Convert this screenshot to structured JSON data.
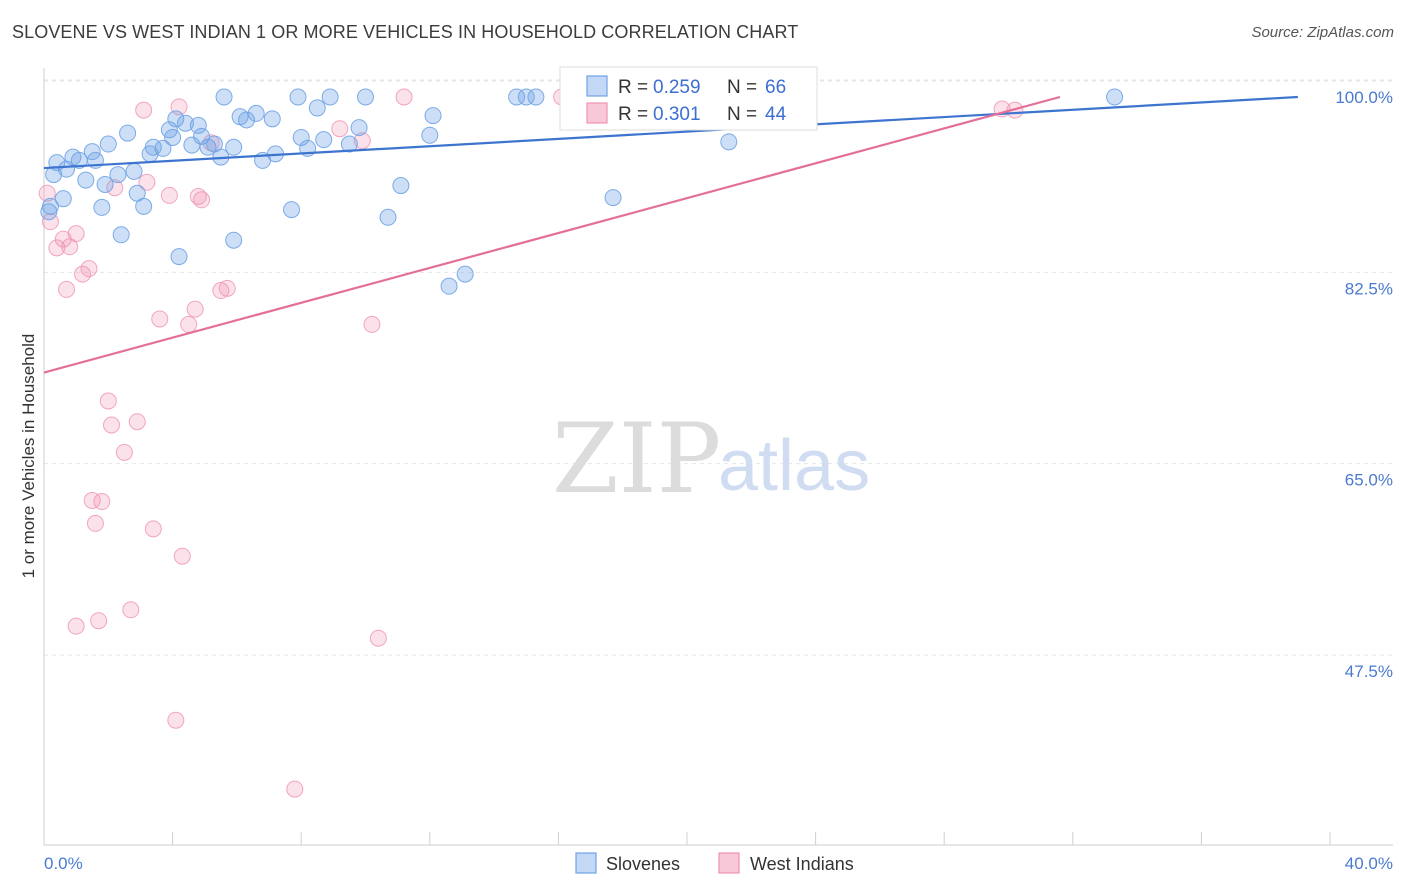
{
  "header": {
    "title": "SLOVENE VS WEST INDIAN 1 OR MORE VEHICLES IN HOUSEHOLD CORRELATION CHART",
    "source": "Source: ZipAtlas.com"
  },
  "watermark": {
    "zip": "ZIP",
    "atlas": "atlas"
  },
  "colors": {
    "blue": "#6fa3e6",
    "pink": "#ef92b2",
    "blue_line": "#3d74cf",
    "pink_line": "#e36f9a"
  },
  "chart_data": {
    "type": "scatter",
    "title": "SLOVENE VS WEST INDIAN 1 OR MORE VEHICLES IN HOUSEHOLD CORRELATION CHART",
    "xlabel": "",
    "ylabel": "1 or more Vehicles in Household",
    "xlim": [
      0,
      40
    ],
    "ylim": [
      32,
      102
    ],
    "x_tick_labels": [
      "0.0%",
      "40.0%"
    ],
    "y_ticks": [
      47.5,
      65.0,
      82.5,
      100.0
    ],
    "y_tick_labels": [
      "47.5%",
      "65.0%",
      "82.5%",
      "100.0%"
    ],
    "legend_stats": [
      {
        "r_label": "R =",
        "r_value": "0.259",
        "n_label": "N =",
        "n_value": "66"
      },
      {
        "r_label": "R =",
        "r_value": "0.301",
        "n_label": "N =",
        "n_value": "44"
      }
    ],
    "series": [
      {
        "name": "Slovenes",
        "color": "#6fa3e6",
        "trend": {
          "x": [
            0,
            39
          ],
          "y": [
            93.5,
            100.0
          ]
        },
        "points": [
          [
            0.3,
            92.9
          ],
          [
            0.4,
            94.0
          ],
          [
            0.6,
            90.7
          ],
          [
            0.7,
            93.4
          ],
          [
            0.9,
            94.5
          ],
          [
            1.1,
            94.2
          ],
          [
            1.3,
            92.4
          ],
          [
            1.5,
            95.0
          ],
          [
            1.6,
            94.2
          ],
          [
            1.8,
            89.9
          ],
          [
            1.9,
            92.0
          ],
          [
            2.0,
            95.7
          ],
          [
            2.3,
            92.9
          ],
          [
            2.4,
            87.4
          ],
          [
            2.6,
            96.7
          ],
          [
            2.8,
            93.2
          ],
          [
            2.9,
            91.2
          ],
          [
            3.1,
            90.0
          ],
          [
            3.3,
            94.8
          ],
          [
            3.4,
            95.4
          ],
          [
            3.7,
            95.3
          ],
          [
            3.9,
            97.0
          ],
          [
            4.0,
            96.3
          ],
          [
            4.1,
            98.0
          ],
          [
            4.2,
            85.4
          ],
          [
            4.4,
            97.6
          ],
          [
            4.6,
            95.6
          ],
          [
            4.8,
            97.4
          ],
          [
            4.9,
            96.4
          ],
          [
            5.1,
            95.4
          ],
          [
            5.3,
            95.7
          ],
          [
            5.5,
            94.5
          ],
          [
            5.6,
            100.0
          ],
          [
            5.9,
            95.4
          ],
          [
            5.9,
            86.9
          ],
          [
            6.1,
            98.2
          ],
          [
            6.3,
            97.9
          ],
          [
            6.6,
            98.5
          ],
          [
            6.8,
            94.2
          ],
          [
            7.1,
            98.0
          ],
          [
            7.2,
            94.8
          ],
          [
            7.7,
            89.7
          ],
          [
            7.9,
            100.0
          ],
          [
            8.0,
            96.3
          ],
          [
            8.2,
            95.3
          ],
          [
            8.5,
            99.0
          ],
          [
            8.7,
            96.1
          ],
          [
            8.9,
            100.0
          ],
          [
            9.5,
            95.7
          ],
          [
            9.8,
            97.2
          ],
          [
            10.0,
            100.0
          ],
          [
            10.7,
            89.0
          ],
          [
            11.1,
            91.9
          ],
          [
            12.0,
            96.5
          ],
          [
            12.1,
            98.3
          ],
          [
            12.6,
            82.7
          ],
          [
            13.1,
            83.8
          ],
          [
            14.7,
            100.0
          ],
          [
            15.0,
            100.0
          ],
          [
            15.3,
            100.0
          ],
          [
            17.7,
            90.8
          ],
          [
            21.3,
            95.9
          ],
          [
            22.1,
            100.0
          ],
          [
            33.3,
            100.0
          ],
          [
            0.2,
            90.0
          ],
          [
            0.15,
            89.5
          ]
        ]
      },
      {
        "name": "West Indians",
        "color": "#ef92b2",
        "trend": {
          "x": [
            0,
            31.6
          ],
          "y": [
            74.8,
            100.0
          ]
        },
        "points": [
          [
            0.1,
            91.2
          ],
          [
            0.2,
            88.6
          ],
          [
            0.4,
            86.2
          ],
          [
            0.6,
            87.0
          ],
          [
            0.7,
            82.4
          ],
          [
            0.8,
            86.3
          ],
          [
            1.0,
            87.5
          ],
          [
            1.2,
            83.8
          ],
          [
            1.4,
            84.3
          ],
          [
            1.5,
            63.1
          ],
          [
            1.6,
            61.0
          ],
          [
            1.7,
            52.1
          ],
          [
            1.8,
            63.0
          ],
          [
            2.0,
            72.2
          ],
          [
            2.1,
            70.0
          ],
          [
            2.2,
            91.7
          ],
          [
            2.5,
            67.5
          ],
          [
            2.7,
            53.1
          ],
          [
            2.9,
            70.3
          ],
          [
            3.1,
            98.8
          ],
          [
            3.2,
            92.2
          ],
          [
            3.4,
            60.5
          ],
          [
            3.6,
            79.7
          ],
          [
            3.9,
            91.0
          ],
          [
            4.1,
            43.0
          ],
          [
            4.2,
            99.1
          ],
          [
            4.3,
            58.0
          ],
          [
            4.5,
            79.2
          ],
          [
            4.7,
            80.6
          ],
          [
            4.8,
            90.9
          ],
          [
            4.9,
            90.6
          ],
          [
            5.2,
            95.8
          ],
          [
            5.5,
            82.3
          ],
          [
            5.7,
            82.5
          ],
          [
            7.8,
            36.7
          ],
          [
            9.2,
            97.1
          ],
          [
            9.9,
            96.0
          ],
          [
            10.2,
            79.2
          ],
          [
            10.4,
            50.5
          ],
          [
            11.2,
            100.0
          ],
          [
            16.1,
            100.0
          ],
          [
            29.8,
            98.9
          ],
          [
            30.2,
            98.8
          ],
          [
            1.0,
            51.6
          ]
        ]
      }
    ]
  },
  "bottom_legend": {
    "blue_label": "Slovenes",
    "pink_label": "West Indians"
  }
}
